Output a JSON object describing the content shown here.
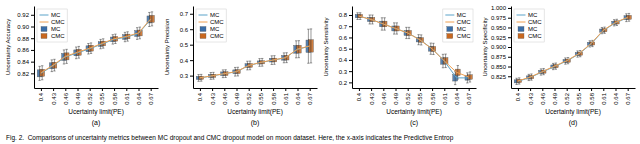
{
  "caption": "Fig. 2.  Comparisons of uncertainty metrics between MC dropout and CMC dropout model on moon dataset. Here, the x-axis indicates the Predictive Entrop",
  "chart_data": [
    {
      "type": "line",
      "title": "(a)",
      "x_label": "Ucertainty limit(PE)",
      "y_label": "Uncertainty Accuracy",
      "x": [
        0.4,
        0.43,
        0.46,
        0.49,
        0.52,
        0.55,
        0.58,
        0.61,
        0.64,
        0.67
      ],
      "xlim": [
        0.383,
        0.688
      ],
      "xticks": [
        0.4,
        0.43,
        0.46,
        0.49,
        0.52,
        0.55,
        0.58,
        0.61,
        0.64,
        0.67
      ],
      "ylim": [
        0.795,
        0.935
      ],
      "yticks": [
        0.82,
        0.84,
        0.86,
        0.88,
        {
          "value": 0.9,
          "label": "0.90"
        },
        0.92
      ],
      "grid": false,
      "legend": "upper left",
      "series": [
        {
          "name": "MC",
          "type": "line",
          "color": "#5ba3c9",
          "values": [
            0.82,
            0.833,
            0.848,
            0.855,
            0.862,
            0.87,
            0.878,
            0.882,
            0.888,
            0.912
          ]
        },
        {
          "name": "CMC",
          "type": "line",
          "color": "#f0a050",
          "values": [
            0.821,
            0.834,
            0.849,
            0.856,
            0.863,
            0.871,
            0.879,
            0.883,
            0.889,
            0.913
          ]
        },
        {
          "name": "MC",
          "type": "box",
          "color": "#3a6ea8",
          "values": [
            0.82,
            0.833,
            0.848,
            0.855,
            0.862,
            0.87,
            0.878,
            0.882,
            0.888,
            0.912
          ],
          "box_half_height": [
            0.006,
            0.005,
            0.006,
            0.005,
            0.005,
            0.004,
            0.004,
            0.004,
            0.005,
            0.006
          ],
          "errors": [
            0.012,
            0.01,
            0.012,
            0.01,
            0.009,
            0.008,
            0.008,
            0.008,
            0.01,
            0.012
          ]
        },
        {
          "name": "CMC",
          "type": "box",
          "color": "#c86820",
          "values": [
            0.821,
            0.834,
            0.849,
            0.856,
            0.863,
            0.871,
            0.879,
            0.883,
            0.889,
            0.913
          ],
          "box_half_height": [
            0.006,
            0.005,
            0.006,
            0.005,
            0.005,
            0.004,
            0.004,
            0.004,
            0.005,
            0.006
          ],
          "errors": [
            0.012,
            0.01,
            0.012,
            0.01,
            0.009,
            0.008,
            0.008,
            0.008,
            0.01,
            0.012
          ]
        }
      ]
    },
    {
      "type": "line",
      "title": "(b)",
      "x_label": "Ucertainty limit(PE)",
      "y_label": "Uncertainty Precision",
      "x": [
        0.4,
        0.43,
        0.46,
        0.49,
        0.52,
        0.55,
        0.58,
        0.61,
        0.64,
        0.67
      ],
      "xlim": [
        0.383,
        0.688
      ],
      "xticks": [
        0.4,
        0.43,
        0.46,
        0.49,
        0.52,
        0.55,
        0.58,
        0.61,
        0.64,
        0.67
      ],
      "ylim": [
        0.22,
        0.75
      ],
      "yticks": [
        0.3,
        0.4,
        0.5,
        0.6,
        0.7
      ],
      "grid": false,
      "legend": "upper left",
      "series": [
        {
          "name": "MC",
          "type": "line",
          "color": "#5ba3c9",
          "values": [
            0.285,
            0.298,
            0.312,
            0.325,
            0.365,
            0.385,
            0.4,
            0.415,
            0.47,
            0.49
          ]
        },
        {
          "name": "CMC",
          "type": "line",
          "color": "#f0a050",
          "values": [
            0.286,
            0.299,
            0.313,
            0.326,
            0.366,
            0.386,
            0.401,
            0.416,
            0.471,
            0.492
          ]
        },
        {
          "name": "MC",
          "type": "box",
          "color": "#3a6ea8",
          "values": [
            0.285,
            0.298,
            0.312,
            0.325,
            0.365,
            0.385,
            0.4,
            0.415,
            0.47,
            0.49
          ],
          "box_half_height": [
            0.01,
            0.01,
            0.012,
            0.012,
            0.012,
            0.01,
            0.012,
            0.015,
            0.025,
            0.04
          ],
          "errors": [
            0.022,
            0.022,
            0.025,
            0.028,
            0.028,
            0.025,
            0.028,
            0.032,
            0.055,
            0.11
          ]
        },
        {
          "name": "CMC",
          "type": "box",
          "color": "#c86820",
          "values": [
            0.286,
            0.299,
            0.313,
            0.326,
            0.366,
            0.386,
            0.401,
            0.416,
            0.471,
            0.492
          ],
          "box_half_height": [
            0.01,
            0.01,
            0.012,
            0.012,
            0.012,
            0.01,
            0.012,
            0.015,
            0.025,
            0.04
          ],
          "errors": [
            0.022,
            0.022,
            0.025,
            0.028,
            0.028,
            0.025,
            0.028,
            0.032,
            0.055,
            0.11
          ]
        }
      ]
    },
    {
      "type": "line",
      "title": "(c)",
      "x_label": "Ucertainty limit(PE)",
      "y_label": "Uncertainty Sensitivity",
      "x": [
        0.4,
        0.43,
        0.46,
        0.49,
        0.52,
        0.55,
        0.58,
        0.61,
        0.64,
        0.67
      ],
      "xlim": [
        0.383,
        0.688
      ],
      "xticks": [
        0.4,
        0.43,
        0.46,
        0.49,
        0.52,
        0.55,
        0.58,
        0.61,
        0.64,
        0.67
      ],
      "ylim": [
        0.15,
        0.88
      ],
      "yticks": [
        0.2,
        0.3,
        0.4,
        0.5,
        0.6,
        0.7,
        0.8
      ],
      "grid": false,
      "legend": "upper right",
      "series": [
        {
          "name": "MC",
          "type": "line",
          "color": "#5ba3c9",
          "values": [
            0.79,
            0.76,
            0.72,
            0.68,
            0.64,
            0.58,
            0.5,
            0.39,
            0.24,
            0.24
          ]
        },
        {
          "name": "CMC",
          "type": "line",
          "color": "#f0a050",
          "values": [
            0.79,
            0.76,
            0.72,
            0.68,
            0.64,
            0.578,
            0.498,
            0.392,
            0.29,
            0.248
          ]
        },
        {
          "name": "MC",
          "type": "box",
          "color": "#3a6ea8",
          "values": [
            0.79,
            0.76,
            0.72,
            0.68,
            0.64,
            0.58,
            0.5,
            0.39,
            0.24,
            0.24
          ],
          "box_half_height": [
            0.015,
            0.018,
            0.025,
            0.022,
            0.022,
            0.02,
            0.022,
            0.028,
            0.028,
            0.02
          ],
          "errors": [
            0.03,
            0.04,
            0.055,
            0.05,
            0.05,
            0.045,
            0.05,
            0.06,
            0.06,
            0.045
          ]
        },
        {
          "name": "CMC",
          "type": "box",
          "color": "#c86820",
          "values": [
            0.79,
            0.76,
            0.72,
            0.68,
            0.64,
            0.578,
            0.498,
            0.392,
            0.29,
            0.248
          ],
          "box_half_height": [
            0.015,
            0.018,
            0.025,
            0.022,
            0.022,
            0.02,
            0.022,
            0.028,
            0.028,
            0.02
          ],
          "errors": [
            0.03,
            0.04,
            0.055,
            0.05,
            0.05,
            0.045,
            0.05,
            0.06,
            0.06,
            0.045
          ]
        }
      ]
    },
    {
      "type": "line",
      "title": "(d)",
      "x_label": "Ucertainty limit(PE)",
      "y_label": "Uncertainty Specificity",
      "x": [
        0.4,
        0.43,
        0.46,
        0.49,
        0.52,
        0.55,
        0.58,
        0.61,
        0.64,
        0.67
      ],
      "xlim": [
        0.383,
        0.688
      ],
      "xticks": [
        0.4,
        0.43,
        0.46,
        0.49,
        0.52,
        0.55,
        0.58,
        0.61,
        0.64,
        0.67
      ],
      "ylim": [
        0.795,
        1.005
      ],
      "yticks": [
        0.825,
        {
          "value": 0.85,
          "label": "0.850"
        },
        0.875,
        {
          "value": 0.9,
          "label": "0.900"
        },
        0.925,
        {
          "value": 0.95,
          "label": "0.950"
        },
        0.975,
        {
          "value": 1.0,
          "label": "1.000"
        }
      ],
      "grid": false,
      "legend": "upper left",
      "series": [
        {
          "name": "MC",
          "type": "line",
          "color": "#5ba3c9",
          "values": [
            0.812,
            0.822,
            0.836,
            0.85,
            0.864,
            0.882,
            0.908,
            0.942,
            0.962,
            0.975
          ]
        },
        {
          "name": "CMC",
          "type": "line",
          "color": "#f0a050",
          "values": [
            0.813,
            0.823,
            0.837,
            0.851,
            0.865,
            0.883,
            0.909,
            0.943,
            0.963,
            0.976
          ]
        },
        {
          "name": "MC",
          "type": "box",
          "color": "#3a6ea8",
          "values": [
            0.812,
            0.822,
            0.836,
            0.85,
            0.864,
            0.882,
            0.908,
            0.942,
            0.962,
            0.975
          ],
          "box_half_height": [
            0.004,
            0.004,
            0.004,
            0.004,
            0.004,
            0.004,
            0.004,
            0.004,
            0.004,
            0.005
          ],
          "errors": [
            0.008,
            0.008,
            0.008,
            0.008,
            0.008,
            0.008,
            0.008,
            0.008,
            0.008,
            0.01
          ]
        },
        {
          "name": "CMC",
          "type": "box",
          "color": "#c86820",
          "values": [
            0.813,
            0.823,
            0.837,
            0.851,
            0.865,
            0.883,
            0.909,
            0.943,
            0.963,
            0.976
          ],
          "box_half_height": [
            0.004,
            0.004,
            0.004,
            0.004,
            0.004,
            0.004,
            0.004,
            0.004,
            0.004,
            0.005
          ],
          "errors": [
            0.008,
            0.008,
            0.008,
            0.008,
            0.008,
            0.008,
            0.008,
            0.008,
            0.008,
            0.01
          ]
        }
      ]
    }
  ]
}
